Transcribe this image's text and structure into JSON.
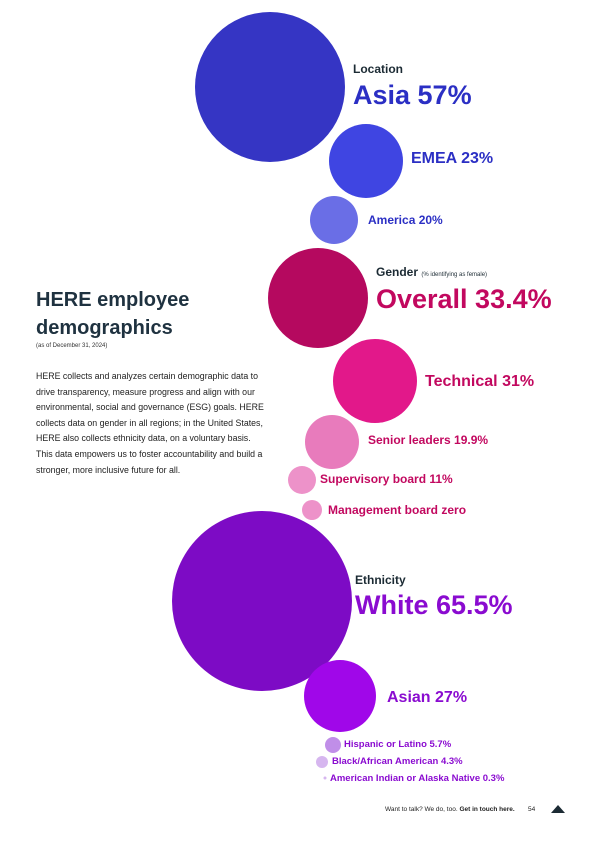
{
  "title": "HERE employee demographics",
  "as_of": "(as of December 31, 2024)",
  "intro": "HERE collects and analyzes certain demographic data to drive transparency, measure progress and align with our environmental, social and governance (ESG) goals. HERE collects data on gender in all regions; in the United States, HERE also collects ethnicity data, on a voluntary basis. This data empowers us to foster accountability and build a stronger, more inclusive future for all.",
  "sections": {
    "location": {
      "heading": "Location",
      "note": ""
    },
    "gender": {
      "heading": "Gender",
      "note": "(% identifying as female)"
    },
    "ethnicity": {
      "heading": "Ethnicity",
      "note": ""
    }
  },
  "labels": {
    "asia": "Asia 57%",
    "emea": "EMEA 23%",
    "america": "America 20%",
    "overall": "Overall 33.4%",
    "technical": "Technical 31%",
    "senior": "Senior leaders 19.9%",
    "supervisory": "Supervisory board 11%",
    "management": "Management board zero",
    "white": "White 65.5%",
    "asian": "Asian 27%",
    "hispanic": "Hispanic or Latino 5.7%",
    "black": "Black/African American 4.3%",
    "indian": "American Indian or Alaska Native 0.3%"
  },
  "footer": {
    "text": "Want to talk? We do, too.",
    "link": "Get in touch here.",
    "page": "54"
  },
  "colors": {
    "location_large": "#3535c4",
    "location_mid": "#3f45e2",
    "location_small": "#6a6ee6",
    "gender_large": "#b5095f",
    "gender_mid": "#e2188a",
    "gender_light": "#e87bbc",
    "gender_lighter": "#ed92c9",
    "ethnicity_large": "#7d0bc5",
    "ethnicity_mid": "#a007e9",
    "ethnicity_light": "#c08ee8",
    "ethnicity_lighter": "#d6b6ef",
    "location_text": "#2b2fc4",
    "gender_text": "#c2085f",
    "ethnicity_text": "#8a0bd0"
  },
  "chart_data": {
    "type": "bubble",
    "series": [
      {
        "group": "Location",
        "items": [
          {
            "label": "Asia",
            "value": 57
          },
          {
            "label": "EMEA",
            "value": 23
          },
          {
            "label": "America",
            "value": 20
          }
        ]
      },
      {
        "group": "Gender",
        "items": [
          {
            "label": "Overall",
            "value": 33.4
          },
          {
            "label": "Technical",
            "value": 31
          },
          {
            "label": "Senior leaders",
            "value": 19.9
          },
          {
            "label": "Supervisory board",
            "value": 11
          },
          {
            "label": "Management board",
            "value": 0
          }
        ]
      },
      {
        "group": "Ethnicity",
        "items": [
          {
            "label": "White",
            "value": 65.5
          },
          {
            "label": "Asian",
            "value": 27
          },
          {
            "label": "Hispanic or Latino",
            "value": 5.7
          },
          {
            "label": "Black/African American",
            "value": 4.3
          },
          {
            "label": "American Indian or Alaska Native",
            "value": 0.3
          }
        ]
      }
    ]
  }
}
